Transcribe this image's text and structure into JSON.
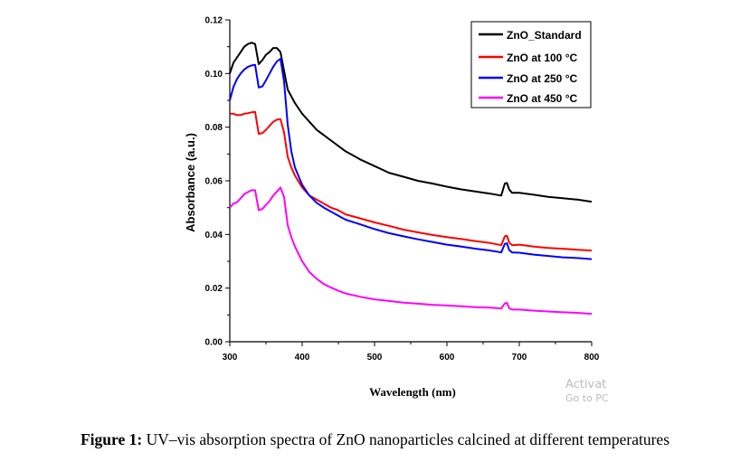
{
  "chart_data": {
    "type": "line",
    "xlabel": "Wavelength (nm)",
    "ylabel": "Absorbance (a.u.)",
    "xlim": [
      300,
      800
    ],
    "ylim": [
      0.0,
      0.12
    ],
    "x_ticks": [
      "300",
      "400",
      "500",
      "600",
      "700",
      "800"
    ],
    "y_ticks": [
      "0.00",
      "0.02",
      "0.04",
      "0.06",
      "0.08",
      "0.10",
      "0.12"
    ],
    "x_tick_values": [
      300,
      400,
      500,
      600,
      700,
      800
    ],
    "y_tick_values": [
      0.0,
      0.02,
      0.04,
      0.06,
      0.08,
      0.1,
      0.12
    ],
    "legend_position": "top-right",
    "grid": false,
    "series": [
      {
        "name": "ZnO_Standard",
        "color": "#000000",
        "x": [
          300,
          305,
          310,
          315,
          320,
          325,
          330,
          335,
          340,
          345,
          350,
          355,
          360,
          365,
          370,
          375,
          380,
          390,
          400,
          410,
          420,
          430,
          440,
          450,
          460,
          470,
          480,
          500,
          520,
          540,
          560,
          580,
          600,
          620,
          640,
          660,
          675,
          680,
          683,
          686,
          690,
          700,
          720,
          740,
          760,
          780,
          800
        ],
        "y": [
          0.1,
          0.104,
          0.106,
          0.108,
          0.11,
          0.111,
          0.1115,
          0.111,
          0.1035,
          0.105,
          0.107,
          0.108,
          0.1095,
          0.1095,
          0.108,
          0.101,
          0.094,
          0.089,
          0.085,
          0.082,
          0.079,
          0.077,
          0.075,
          0.073,
          0.071,
          0.0695,
          0.068,
          0.0655,
          0.063,
          0.0615,
          0.06,
          0.059,
          0.0578,
          0.0568,
          0.056,
          0.0552,
          0.0545,
          0.059,
          0.0592,
          0.0568,
          0.0555,
          0.0555,
          0.0548,
          0.054,
          0.0535,
          0.053,
          0.0522
        ]
      },
      {
        "name": "ZnO at 100 °C",
        "color": "#ff0000",
        "x": [
          300,
          305,
          310,
          315,
          320,
          325,
          330,
          335,
          340,
          345,
          350,
          355,
          360,
          365,
          370,
          375,
          380,
          385,
          390,
          400,
          410,
          420,
          430,
          440,
          450,
          460,
          480,
          500,
          520,
          540,
          560,
          580,
          600,
          620,
          640,
          660,
          675,
          680,
          683,
          686,
          690,
          700,
          720,
          740,
          760,
          780,
          800
        ],
        "y": [
          0.085,
          0.085,
          0.0845,
          0.0845,
          0.085,
          0.0852,
          0.0855,
          0.0857,
          0.0775,
          0.0778,
          0.079,
          0.0805,
          0.082,
          0.0828,
          0.083,
          0.078,
          0.069,
          0.065,
          0.062,
          0.0575,
          0.0545,
          0.053,
          0.0515,
          0.05,
          0.049,
          0.0475,
          0.046,
          0.0445,
          0.0432,
          0.0418,
          0.0408,
          0.0398,
          0.039,
          0.0383,
          0.0375,
          0.0368,
          0.036,
          0.0393,
          0.0395,
          0.037,
          0.036,
          0.0362,
          0.0355,
          0.035,
          0.0347,
          0.0343,
          0.034
        ]
      },
      {
        "name": "ZnO at 250 °C",
        "color": "#0000ff",
        "x": [
          300,
          305,
          310,
          315,
          320,
          325,
          330,
          335,
          340,
          345,
          350,
          355,
          360,
          365,
          370,
          375,
          380,
          385,
          390,
          400,
          410,
          420,
          430,
          440,
          450,
          460,
          480,
          500,
          520,
          540,
          560,
          580,
          600,
          620,
          640,
          660,
          675,
          680,
          683,
          686,
          690,
          700,
          720,
          740,
          760,
          780,
          800
        ],
        "y": [
          0.09,
          0.095,
          0.098,
          0.1,
          0.1015,
          0.1025,
          0.103,
          0.1032,
          0.0948,
          0.0952,
          0.0975,
          0.1,
          0.1025,
          0.1045,
          0.1055,
          0.097,
          0.081,
          0.071,
          0.065,
          0.0585,
          0.0545,
          0.0518,
          0.05,
          0.0485,
          0.047,
          0.0455,
          0.0438,
          0.042,
          0.0405,
          0.0393,
          0.0382,
          0.0372,
          0.0362,
          0.0355,
          0.0347,
          0.034,
          0.0333,
          0.0365,
          0.0367,
          0.0342,
          0.0333,
          0.0332,
          0.0325,
          0.032,
          0.0315,
          0.0312,
          0.0308
        ]
      },
      {
        "name": "ZnO at 450 °C",
        "color": "#ff00ff",
        "x": [
          300,
          305,
          310,
          315,
          320,
          325,
          330,
          335,
          340,
          345,
          350,
          355,
          360,
          365,
          370,
          375,
          380,
          385,
          390,
          400,
          410,
          420,
          430,
          440,
          450,
          460,
          480,
          500,
          520,
          540,
          560,
          580,
          600,
          620,
          640,
          660,
          675,
          680,
          683,
          686,
          690,
          700,
          720,
          740,
          760,
          780,
          800
        ],
        "y": [
          0.05,
          0.0515,
          0.052,
          0.0535,
          0.055,
          0.0558,
          0.0565,
          0.0565,
          0.049,
          0.0495,
          0.051,
          0.0525,
          0.0545,
          0.056,
          0.0575,
          0.054,
          0.0435,
          0.039,
          0.0355,
          0.03,
          0.026,
          0.0235,
          0.0215,
          0.0202,
          0.019,
          0.018,
          0.0168,
          0.0158,
          0.0152,
          0.0146,
          0.0142,
          0.0138,
          0.0135,
          0.0132,
          0.0129,
          0.0127,
          0.0124,
          0.0143,
          0.0145,
          0.0125,
          0.012,
          0.012,
          0.0116,
          0.0113,
          0.011,
          0.0108,
          0.0104
        ]
      }
    ]
  },
  "legend": {
    "entries": [
      "ZnO_Standard",
      "ZnO at 100 °C",
      "ZnO at 250 °C",
      "ZnO at 450 °C"
    ]
  },
  "watermark": {
    "line1": "Activat",
    "line2": "Go to PC"
  },
  "caption": {
    "label": "Figure 1:",
    "text": " UV–vis absorption spectra of ZnO nanoparticles calcined at different temperatures"
  }
}
